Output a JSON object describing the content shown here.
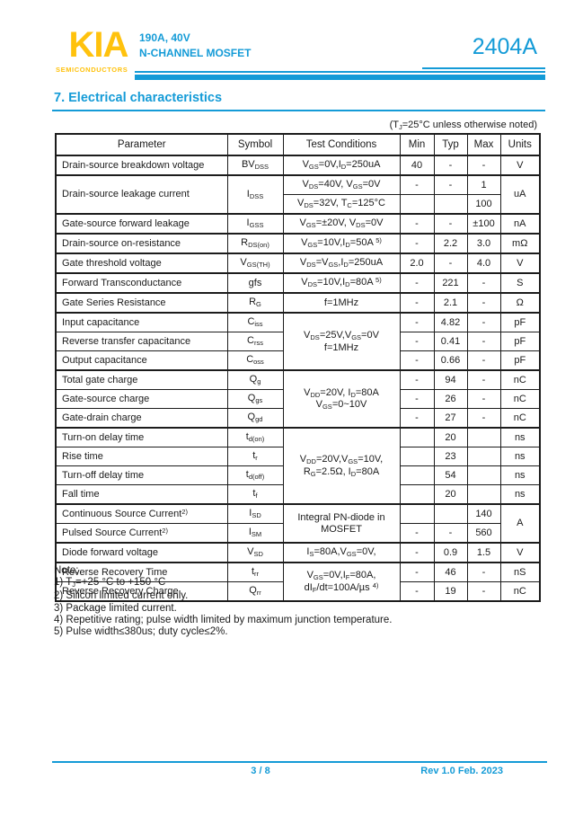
{
  "colors": {
    "accent": "#149BD7",
    "logo_yellow": "#FFC20D",
    "text": "#1A1A1A"
  },
  "header": {
    "logo_text": "KIA",
    "logo_subtext": "SEMICONDUCTORS",
    "rating_line": "190A, 40V",
    "device_line": "N-CHANNEL MOSFET",
    "part_number": "2404A"
  },
  "section": {
    "title": "7.  Electrical characteristics"
  },
  "table": {
    "note_above": "(T_{J}=25°C unless otherwise noted)",
    "columns": [
      "Parameter",
      "Symbol",
      "Test Conditions",
      "Min",
      "Typ",
      "Max",
      "Units"
    ],
    "rows": [
      {
        "group": true,
        "cells": [
          {
            "t": "Drain-source breakdown voltage",
            "p": true
          },
          {
            "t": "BV_{DSS}"
          },
          {
            "t": "V_{GS}=0V,I_{D}=250uA"
          },
          {
            "t": "40"
          },
          {
            "t": "-"
          },
          {
            "t": "-"
          },
          {
            "t": "V"
          }
        ]
      },
      {
        "group": true,
        "cells": [
          {
            "t": "Drain-source leakage current",
            "p": true,
            "rs": 2
          },
          {
            "t": "I_{DSS}",
            "rs": 2
          },
          {
            "t": "V_{DS}=40V, V_{GS}=0V"
          },
          {
            "t": "-"
          },
          {
            "t": "-"
          },
          {
            "t": "1"
          },
          {
            "t": "uA",
            "rs": 2
          }
        ]
      },
      {
        "group": false,
        "cells": [
          {
            "t": "V_{DS}=32V, T_{C}=125°C"
          },
          {
            "t": ""
          },
          {
            "t": ""
          },
          {
            "t": "100"
          }
        ]
      },
      {
        "group": true,
        "cells": [
          {
            "t": "Gate-source forward leakage",
            "p": true
          },
          {
            "t": "I_{GSS}"
          },
          {
            "t": "V_{GS}=±20V, V_{DS}=0V"
          },
          {
            "t": "-"
          },
          {
            "t": "-"
          },
          {
            "t": "±100"
          },
          {
            "t": "nA"
          }
        ]
      },
      {
        "group": true,
        "cells": [
          {
            "t": "Drain-source on-resistance",
            "p": true
          },
          {
            "t": "R_{DS(on)}"
          },
          {
            "t": "V_{GS}=10V,I_{D}=50A ^{5)}"
          },
          {
            "t": "-"
          },
          {
            "t": "2.2"
          },
          {
            "t": "3.0"
          },
          {
            "t": "mΩ"
          }
        ]
      },
      {
        "group": true,
        "cells": [
          {
            "t": "Gate threshold voltage",
            "p": true
          },
          {
            "t": "V_{GS(TH)}"
          },
          {
            "t": "V_{DS}=V_{GS},I_{D}=250uA"
          },
          {
            "t": "2.0"
          },
          {
            "t": "-"
          },
          {
            "t": "4.0"
          },
          {
            "t": "V"
          }
        ]
      },
      {
        "group": true,
        "cells": [
          {
            "t": "Forward Transconductance",
            "p": true
          },
          {
            "t": "gfs"
          },
          {
            "t": "V_{DS}=10V,I_{D}=80A ^{5)}"
          },
          {
            "t": "-"
          },
          {
            "t": "221"
          },
          {
            "t": "-"
          },
          {
            "t": "S"
          }
        ]
      },
      {
        "group": true,
        "cells": [
          {
            "t": "Gate Series Resistance",
            "p": true
          },
          {
            "t": "R_{G}"
          },
          {
            "t": "f=1MHz"
          },
          {
            "t": "-"
          },
          {
            "t": "2.1"
          },
          {
            "t": "-"
          },
          {
            "t": "Ω"
          }
        ]
      },
      {
        "group": true,
        "cells": [
          {
            "t": "Input capacitance",
            "p": true
          },
          {
            "t": "C_{iss}"
          },
          {
            "t": "V_{DS}=25V,V_{GS}=0V\nf=1MHz",
            "rs": 3
          },
          {
            "t": "-"
          },
          {
            "t": "4.82"
          },
          {
            "t": "-"
          },
          {
            "t": "pF"
          }
        ]
      },
      {
        "group": false,
        "cells": [
          {
            "t": "Reverse transfer capacitance",
            "p": true
          },
          {
            "t": "C_{rss}"
          },
          {
            "t": "-"
          },
          {
            "t": "0.41"
          },
          {
            "t": "-"
          },
          {
            "t": "pF"
          }
        ]
      },
      {
        "group": false,
        "cells": [
          {
            "t": "Output capacitance",
            "p": true
          },
          {
            "t": "C_{oss}"
          },
          {
            "t": "-"
          },
          {
            "t": "0.66"
          },
          {
            "t": "-"
          },
          {
            "t": "pF"
          }
        ]
      },
      {
        "group": true,
        "cells": [
          {
            "t": "Total gate charge",
            "p": true
          },
          {
            "t": "Q_{g}"
          },
          {
            "t": "V_{DD}=20V, I_{D}=80A\nV_{GS}=0~10V",
            "rs": 3
          },
          {
            "t": "-"
          },
          {
            "t": "94"
          },
          {
            "t": "-"
          },
          {
            "t": "nC"
          }
        ]
      },
      {
        "group": false,
        "cells": [
          {
            "t": "Gate-source charge",
            "p": true
          },
          {
            "t": "Q_{gs}"
          },
          {
            "t": "-"
          },
          {
            "t": "26"
          },
          {
            "t": "-"
          },
          {
            "t": "nC"
          }
        ]
      },
      {
        "group": false,
        "cells": [
          {
            "t": "Gate-drain charge",
            "p": true
          },
          {
            "t": "Q_{gd}"
          },
          {
            "t": "-"
          },
          {
            "t": "27"
          },
          {
            "t": "-"
          },
          {
            "t": "nC"
          }
        ]
      },
      {
        "group": true,
        "cells": [
          {
            "t": "Turn-on delay time",
            "p": true
          },
          {
            "t": "t_{d(on)}"
          },
          {
            "t": "V_{DD}=20V,V_{GS}=10V,\nR_{G}=2.5Ω, I_{D}=80A",
            "rs": 4
          },
          {
            "t": ""
          },
          {
            "t": "20"
          },
          {
            "t": ""
          },
          {
            "t": "ns"
          }
        ]
      },
      {
        "group": false,
        "cells": [
          {
            "t": "Rise time",
            "p": true
          },
          {
            "t": "t_{r}"
          },
          {
            "t": ""
          },
          {
            "t": "23"
          },
          {
            "t": ""
          },
          {
            "t": "ns"
          }
        ]
      },
      {
        "group": false,
        "cells": [
          {
            "t": "Turn-off delay time",
            "p": true
          },
          {
            "t": "t_{d(off)}"
          },
          {
            "t": ""
          },
          {
            "t": "54"
          },
          {
            "t": ""
          },
          {
            "t": "ns"
          }
        ]
      },
      {
        "group": false,
        "cells": [
          {
            "t": "Fall time",
            "p": true
          },
          {
            "t": "t_{f}"
          },
          {
            "t": ""
          },
          {
            "t": "20"
          },
          {
            "t": ""
          },
          {
            "t": "ns"
          }
        ]
      },
      {
        "group": true,
        "cells": [
          {
            "t": "Continuous Source Current^{2)}",
            "p": true
          },
          {
            "t": "I_{SD}"
          },
          {
            "t": "Integral PN-diode in\nMOSFET",
            "rs": 2
          },
          {
            "t": ""
          },
          {
            "t": ""
          },
          {
            "t": "140"
          },
          {
            "t": "A",
            "rs": 2
          }
        ]
      },
      {
        "group": false,
        "cells": [
          {
            "t": "Pulsed Source Current^{2)}",
            "p": true
          },
          {
            "t": "I_{SM}"
          },
          {
            "t": "-"
          },
          {
            "t": "-"
          },
          {
            "t": "560"
          }
        ]
      },
      {
        "group": true,
        "cells": [
          {
            "t": "Diode forward voltage",
            "p": true
          },
          {
            "t": "V_{SD}"
          },
          {
            "t": "I_{S}=80A,V_{GS}=0V,"
          },
          {
            "t": "-"
          },
          {
            "t": "0.9"
          },
          {
            "t": "1.5"
          },
          {
            "t": "V"
          }
        ]
      },
      {
        "group": true,
        "cells": [
          {
            "t": "Reverse Recovery Time",
            "p": true
          },
          {
            "t": "t_{rr}"
          },
          {
            "t": "V_{GS}=0V,I_{F}=80A,\ndI_{F}/dt=100A/µs ^{4)}",
            "rs": 2
          },
          {
            "t": "-"
          },
          {
            "t": "46"
          },
          {
            "t": "-"
          },
          {
            "t": "nS"
          }
        ]
      },
      {
        "group": false,
        "cells": [
          {
            "t": "Reverse Recovery Charge",
            "p": true
          },
          {
            "t": "Q_{rr}"
          },
          {
            "t": "-"
          },
          {
            "t": "19"
          },
          {
            "t": "-"
          },
          {
            "t": "nC"
          }
        ]
      }
    ]
  },
  "notes": {
    "label": "Note:",
    "items": [
      "1) T_{J}=+25 °C to +150 °C",
      "2) Silicon limited current only.",
      "3) Package limited current.",
      "4) Repetitive rating; pulse width limited by maximum junction temperature.",
      "5) Pulse width≤380us; duty cycle≤2%."
    ]
  },
  "footer": {
    "page": "3 / 8",
    "revision": "Rev 1.0 Feb. 2023"
  }
}
